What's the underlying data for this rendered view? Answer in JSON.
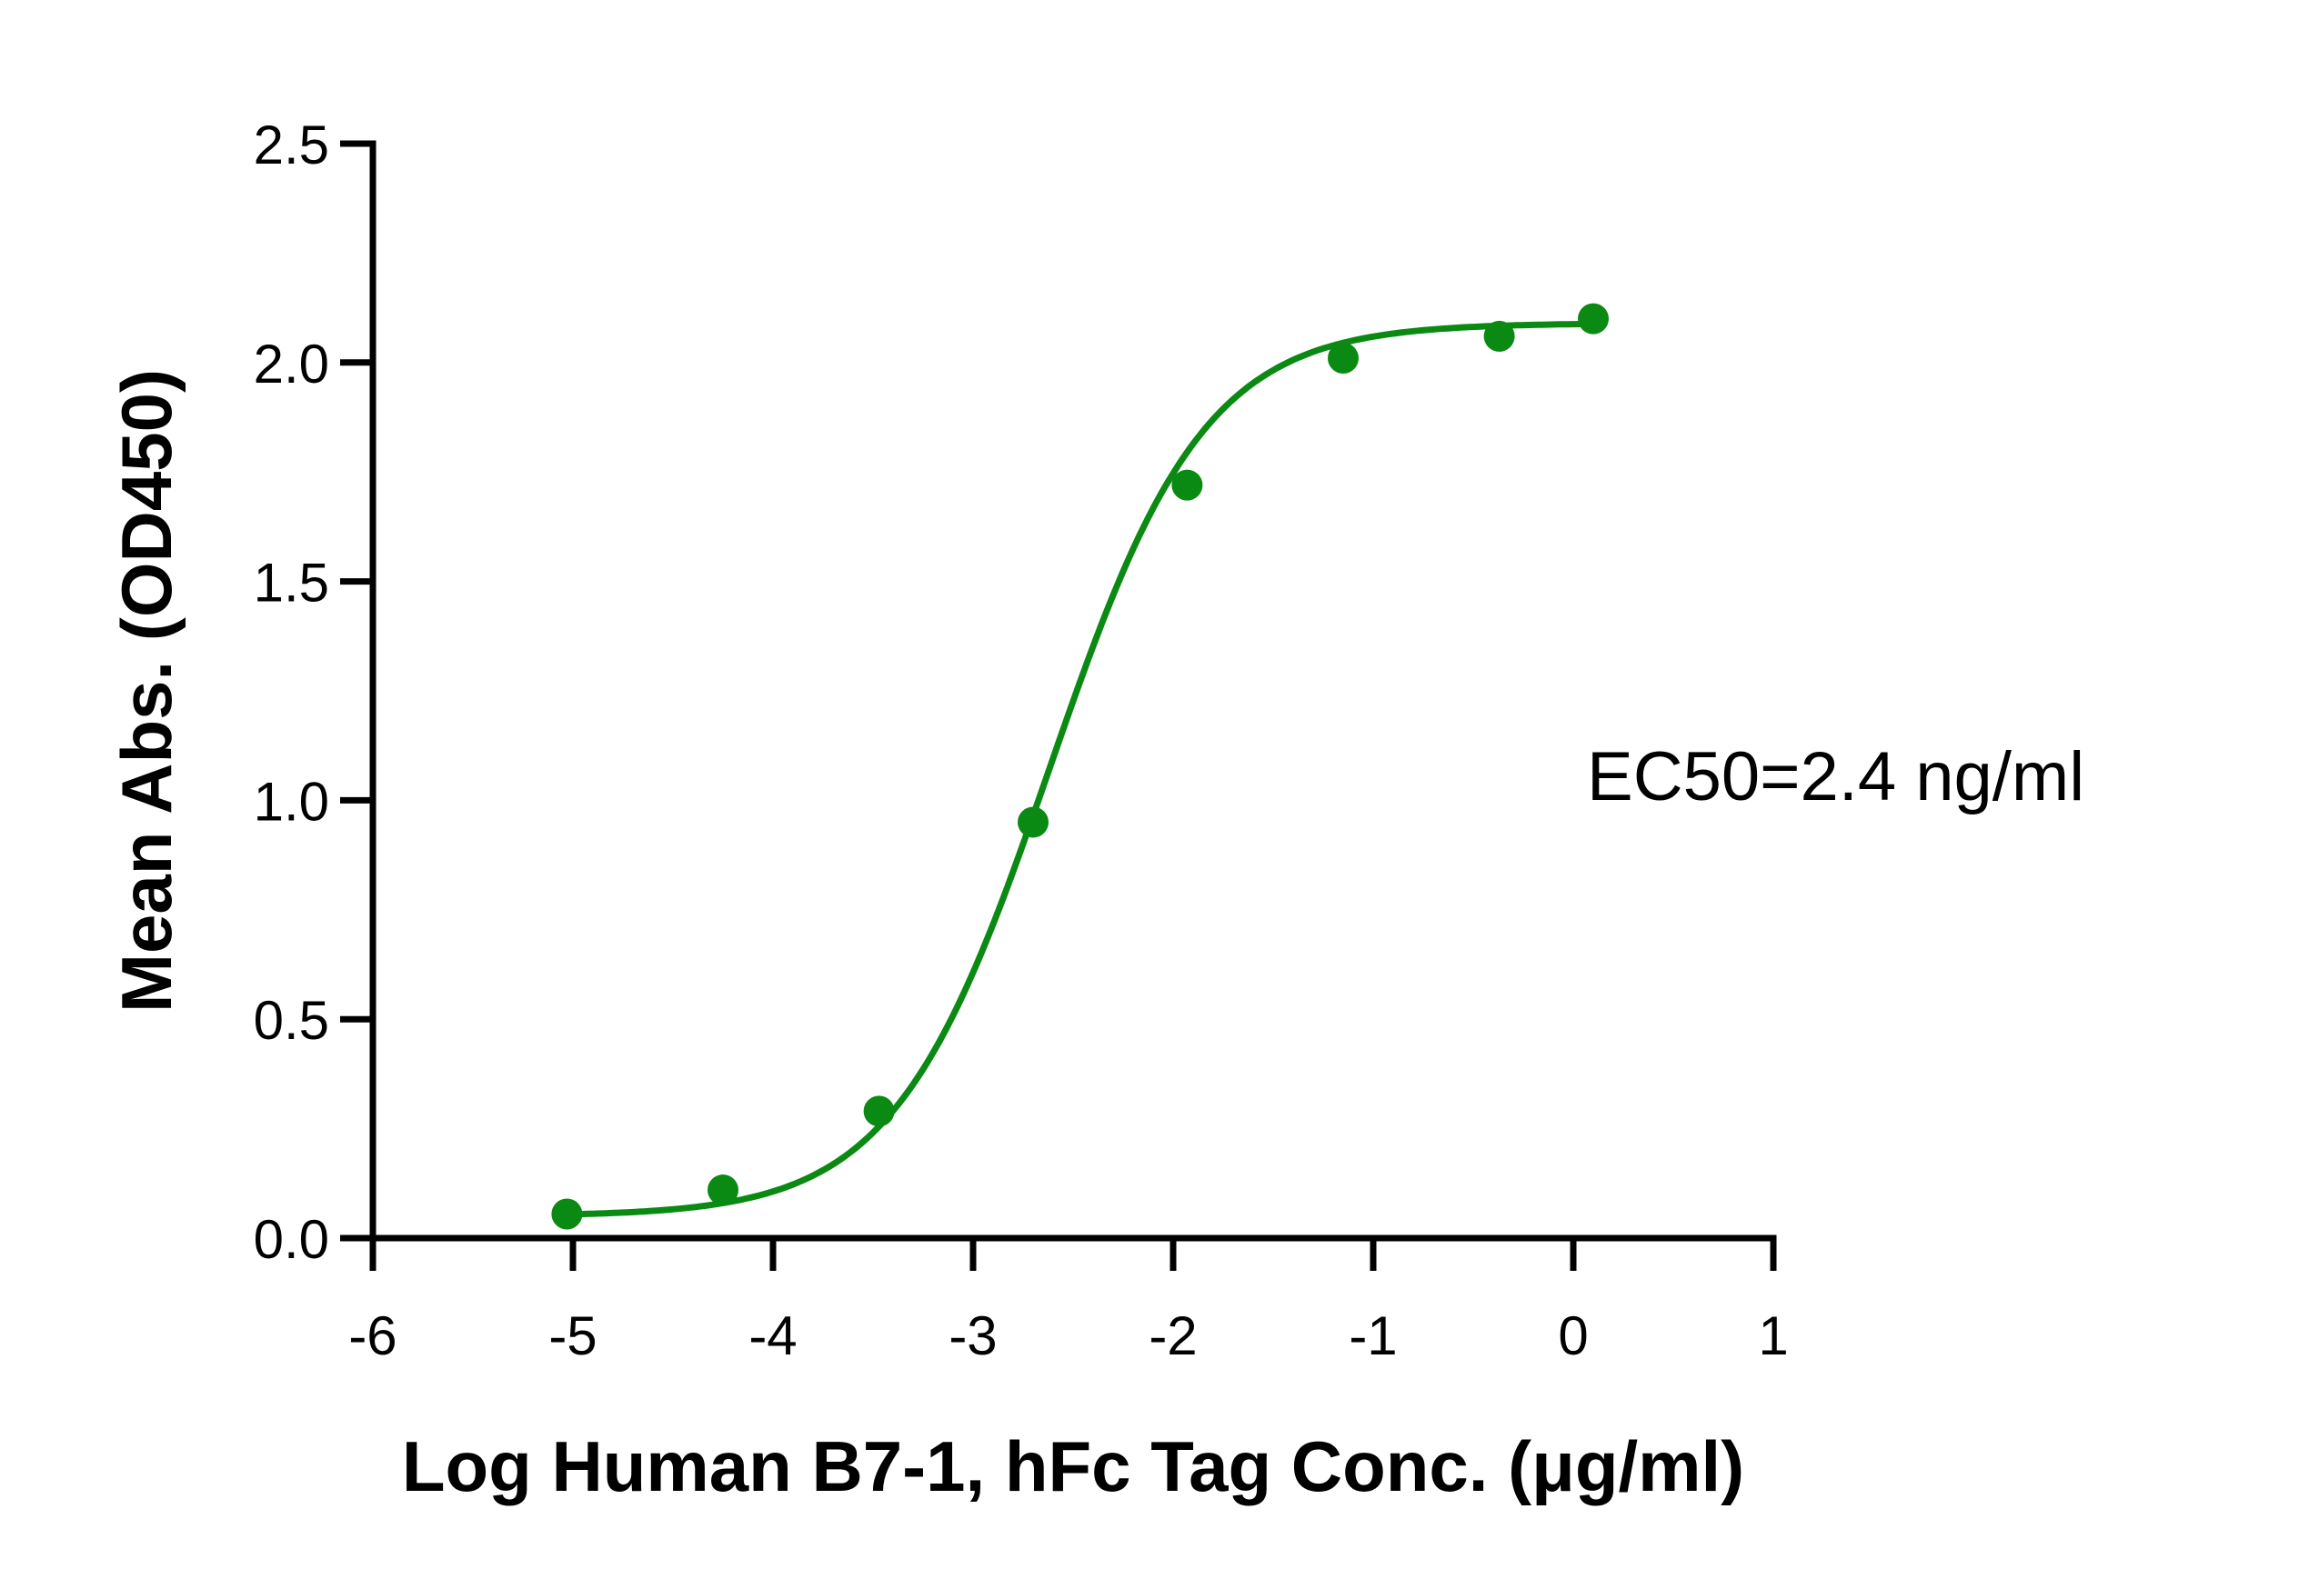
{
  "chart_data": {
    "type": "scatter",
    "xlabel": "Log Human B7-1, hFc Tag Conc. (μg/ml)",
    "ylabel": "Mean Abs. (OD450)",
    "xlim": [
      -6,
      1
    ],
    "ylim": [
      0,
      2.5
    ],
    "x_ticks": [
      -6,
      -5,
      -4,
      -3,
      -2,
      -1,
      0,
      1
    ],
    "x_tick_labels": [
      "-6",
      "-5",
      "-4",
      "-3",
      "-2",
      "-1",
      "0",
      "1"
    ],
    "y_ticks": [
      0,
      0.5,
      1.0,
      1.5,
      2.0,
      2.5
    ],
    "y_tick_labels": [
      "0.0",
      "0.5",
      "1.0",
      "1.5",
      "2.0",
      "2.5"
    ],
    "grid": false,
    "legend": "none",
    "color": "#0a8a12",
    "annotation": "EC50=2.4 ng/ml",
    "points": [
      {
        "x": -5.03,
        "y": 0.055
      },
      {
        "x": -4.25,
        "y": 0.11
      },
      {
        "x": -3.47,
        "y": 0.29
      },
      {
        "x": -2.7,
        "y": 0.95
      },
      {
        "x": -1.93,
        "y": 1.72
      },
      {
        "x": -1.15,
        "y": 2.01
      },
      {
        "x": -0.37,
        "y": 2.06
      },
      {
        "x": 0.1,
        "y": 2.1
      }
    ],
    "fit": {
      "model": "4PL",
      "bottom": 0.05,
      "top": 2.09,
      "logEC50": -2.62,
      "hill": 1.12,
      "x_range": [
        -5.03,
        0.1
      ]
    }
  }
}
